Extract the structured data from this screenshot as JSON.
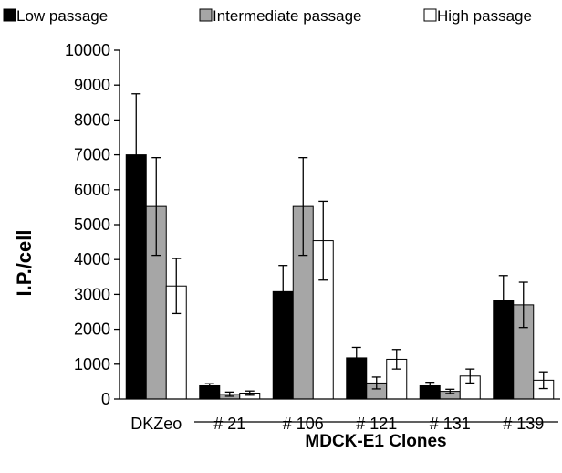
{
  "chart_data": {
    "type": "bar",
    "categories": [
      "DKZeo",
      "# 21",
      "# 106",
      "# 121",
      "# 131",
      "# 139"
    ],
    "series": [
      {
        "name": "Low passage",
        "color": "#000000",
        "values": [
          7000,
          380,
          3080,
          1180,
          380,
          2840
        ],
        "errors": [
          1750,
          60,
          750,
          300,
          100,
          700
        ]
      },
      {
        "name": "Intermediate passage",
        "color": "#a6a6a6",
        "values": [
          5520,
          140,
          5520,
          460,
          220,
          2700
        ],
        "errors": [
          1400,
          60,
          1400,
          170,
          60,
          650
        ]
      },
      {
        "name": "High passage",
        "color": "#ffffff",
        "values": [
          3240,
          170,
          4540,
          1140,
          660,
          540
        ],
        "errors": [
          790,
          60,
          1130,
          280,
          200,
          240
        ]
      }
    ],
    "ylabel": "I.P./cell",
    "ylim": [
      0,
      10000
    ],
    "yticks": [
      "0",
      "1000",
      "2000",
      "3000",
      "4000",
      "5000",
      "6000",
      "7000",
      "8000",
      "9000",
      "10000"
    ],
    "group_label": "MDCK-E1 Clones",
    "legend_position": "top",
    "grid": false
  }
}
